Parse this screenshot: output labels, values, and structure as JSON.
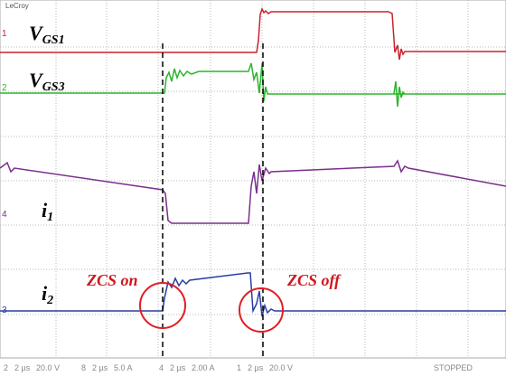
{
  "logo": "LeCroy",
  "traces": [
    {
      "label": "V",
      "sub": "GS1"
    },
    {
      "label": "V",
      "sub": "GS3"
    },
    {
      "label": "i",
      "sub": "1"
    },
    {
      "label": "i",
      "sub": "2"
    }
  ],
  "channel_markers": [
    "1",
    "2",
    "4",
    "3"
  ],
  "annotations": [
    "ZCS on",
    "ZCS off"
  ],
  "status_bar": {
    "channels": [
      {
        "id": "2",
        "timebase": "2 µs",
        "scale": "20.0 V"
      },
      {
        "id": "8",
        "timebase": "2 µs",
        "scale": "5.0 A"
      },
      {
        "id": "4",
        "timebase": "2 µs",
        "scale": "2.00 A"
      },
      {
        "id": "1",
        "timebase": "2 µs",
        "scale": "20.0 V"
      }
    ],
    "state": "STOPPED"
  }
}
